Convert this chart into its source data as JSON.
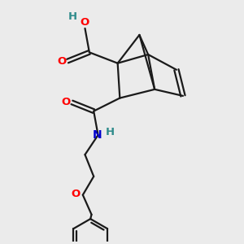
{
  "background_color": "#ebebeb",
  "bond_color": "#1a1a1a",
  "bond_width": 1.6,
  "O_color": "#ff0000",
  "N_color": "#0000cc",
  "H_color": "#2e8b8b",
  "font_size": 9.5,
  "fig_width": 3.0,
  "fig_height": 3.0,
  "dpi": 100,
  "xlim": [
    0,
    10
  ],
  "ylim": [
    -1,
    10
  ]
}
